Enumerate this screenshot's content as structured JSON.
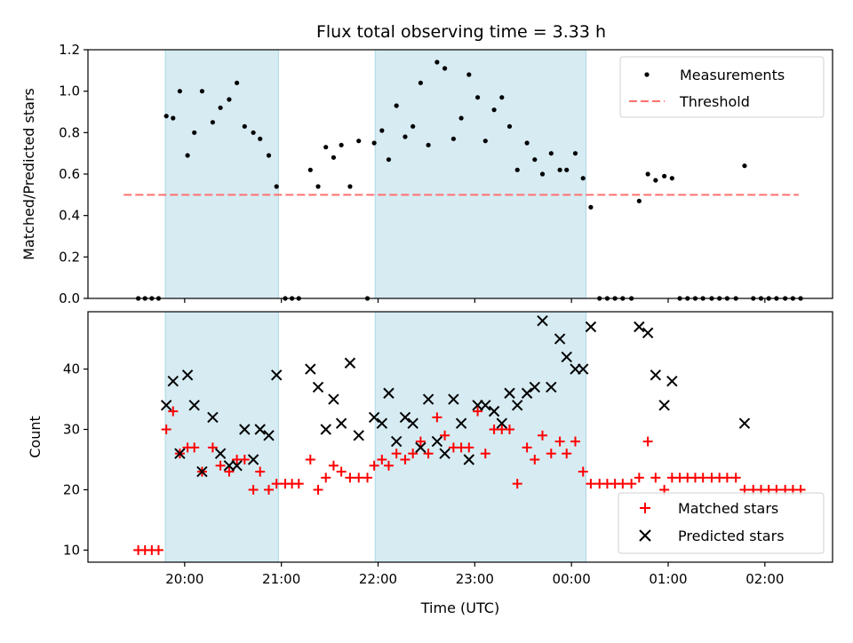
{
  "chart_data": {
    "title": "Flux total observing time = 3.33 h",
    "xlabel": "Time (UTC)",
    "x_tick_labels": [
      "20:00",
      "21:00",
      "22:00",
      "23:00",
      "00:00",
      "01:00",
      "02:00"
    ],
    "x_tick_hours": [
      20,
      21,
      22,
      23,
      24,
      25,
      26
    ],
    "x_range_hours": [
      19.0,
      26.7
    ],
    "shaded_regions_hours": [
      [
        19.8,
        20.97
      ],
      [
        21.97,
        24.15
      ]
    ],
    "shade_color": "#add8e6",
    "top": {
      "type": "scatter",
      "ylabel": "Matched/Predicted stars",
      "ylim": [
        0.0,
        1.2
      ],
      "y_ticks": [
        "0.0",
        "0.2",
        "0.4",
        "0.6",
        "0.8",
        "1.0",
        "1.2"
      ],
      "y_tick_values": [
        0.0,
        0.2,
        0.4,
        0.6,
        0.8,
        1.0,
        1.2
      ],
      "series": [
        {
          "name": "Measurements",
          "color": "#000000",
          "marker": "dot",
          "points": [
            [
              19.52,
              0.0
            ],
            [
              19.59,
              0.0
            ],
            [
              19.66,
              0.0
            ],
            [
              19.73,
              0.0
            ],
            [
              19.81,
              0.88
            ],
            [
              19.88,
              0.87
            ],
            [
              19.95,
              1.0
            ],
            [
              20.03,
              0.69
            ],
            [
              20.1,
              0.8
            ],
            [
              20.18,
              1.0
            ],
            [
              20.29,
              0.85
            ],
            [
              20.37,
              0.92
            ],
            [
              20.46,
              0.96
            ],
            [
              20.54,
              1.04
            ],
            [
              20.62,
              0.83
            ],
            [
              20.71,
              0.8
            ],
            [
              20.78,
              0.77
            ],
            [
              20.87,
              0.69
            ],
            [
              20.95,
              0.54
            ],
            [
              21.04,
              0.0
            ],
            [
              21.11,
              0.0
            ],
            [
              21.18,
              0.0
            ],
            [
              21.3,
              0.62
            ],
            [
              21.38,
              0.54
            ],
            [
              21.46,
              0.73
            ],
            [
              21.54,
              0.68
            ],
            [
              21.62,
              0.74
            ],
            [
              21.71,
              0.54
            ],
            [
              21.8,
              0.76
            ],
            [
              21.89,
              0.0
            ],
            [
              21.96,
              0.75
            ],
            [
              22.04,
              0.81
            ],
            [
              22.11,
              0.67
            ],
            [
              22.19,
              0.93
            ],
            [
              22.28,
              0.78
            ],
            [
              22.36,
              0.83
            ],
            [
              22.44,
              1.04
            ],
            [
              22.52,
              0.74
            ],
            [
              22.61,
              1.14
            ],
            [
              22.69,
              1.11
            ],
            [
              22.78,
              0.77
            ],
            [
              22.86,
              0.87
            ],
            [
              22.94,
              1.08
            ],
            [
              23.03,
              0.97
            ],
            [
              23.11,
              0.76
            ],
            [
              23.2,
              0.91
            ],
            [
              23.28,
              0.97
            ],
            [
              23.36,
              0.83
            ],
            [
              23.44,
              0.62
            ],
            [
              23.54,
              0.75
            ],
            [
              23.62,
              0.67
            ],
            [
              23.7,
              0.6
            ],
            [
              23.79,
              0.7
            ],
            [
              23.88,
              0.62
            ],
            [
              23.95,
              0.62
            ],
            [
              24.04,
              0.7
            ],
            [
              24.12,
              0.58
            ],
            [
              24.2,
              0.44
            ],
            [
              24.29,
              0.0
            ],
            [
              24.37,
              0.0
            ],
            [
              24.45,
              0.0
            ],
            [
              24.53,
              0.0
            ],
            [
              24.62,
              0.0
            ],
            [
              24.7,
              0.47
            ],
            [
              24.79,
              0.6
            ],
            [
              24.87,
              0.57
            ],
            [
              24.96,
              0.59
            ],
            [
              25.04,
              0.58
            ],
            [
              25.12,
              0.0
            ],
            [
              25.2,
              0.0
            ],
            [
              25.28,
              0.0
            ],
            [
              25.36,
              0.0
            ],
            [
              25.45,
              0.0
            ],
            [
              25.53,
              0.0
            ],
            [
              25.61,
              0.0
            ],
            [
              25.7,
              0.0
            ],
            [
              25.79,
              0.64
            ],
            [
              25.88,
              0.0
            ],
            [
              25.96,
              0.0
            ],
            [
              26.04,
              0.0
            ],
            [
              26.12,
              0.0
            ],
            [
              26.21,
              0.0
            ],
            [
              26.29,
              0.0
            ],
            [
              26.37,
              0.0
            ]
          ]
        },
        {
          "name": "Threshold",
          "color": "#ff7070",
          "style": "dashed",
          "points": [
            [
              19.37,
              0.5
            ],
            [
              26.35,
              0.5
            ]
          ]
        }
      ],
      "legend": "upper right"
    },
    "bottom": {
      "type": "scatter",
      "ylabel": "Count",
      "ylim": [
        8,
        49.5
      ],
      "y_ticks": [
        "10",
        "20",
        "30",
        "40"
      ],
      "y_tick_values": [
        10,
        20,
        30,
        40
      ],
      "series": [
        {
          "name": "Matched stars",
          "color": "#ff0000",
          "marker": "plus",
          "points": [
            [
              19.52,
              10
            ],
            [
              19.59,
              10
            ],
            [
              19.66,
              10
            ],
            [
              19.73,
              10
            ],
            [
              19.81,
              30
            ],
            [
              19.88,
              33
            ],
            [
              19.95,
              26
            ],
            [
              20.03,
              27
            ],
            [
              20.1,
              27
            ],
            [
              20.18,
              23
            ],
            [
              20.29,
              27
            ],
            [
              20.37,
              24
            ],
            [
              20.46,
              23
            ],
            [
              20.54,
              25
            ],
            [
              20.62,
              25
            ],
            [
              20.71,
              20
            ],
            [
              20.78,
              23
            ],
            [
              20.87,
              20
            ],
            [
              20.95,
              21
            ],
            [
              21.04,
              21
            ],
            [
              21.11,
              21
            ],
            [
              21.18,
              21
            ],
            [
              21.3,
              25
            ],
            [
              21.38,
              20
            ],
            [
              21.46,
              22
            ],
            [
              21.54,
              24
            ],
            [
              21.62,
              23
            ],
            [
              21.71,
              22
            ],
            [
              21.8,
              22
            ],
            [
              21.89,
              22
            ],
            [
              21.96,
              24
            ],
            [
              22.04,
              25
            ],
            [
              22.11,
              24
            ],
            [
              22.19,
              26
            ],
            [
              22.28,
              25
            ],
            [
              22.36,
              26
            ],
            [
              22.44,
              28
            ],
            [
              22.52,
              26
            ],
            [
              22.61,
              32
            ],
            [
              22.69,
              29
            ],
            [
              22.78,
              27
            ],
            [
              22.86,
              27
            ],
            [
              22.94,
              27
            ],
            [
              23.03,
              33
            ],
            [
              23.11,
              26
            ],
            [
              23.2,
              30
            ],
            [
              23.28,
              30
            ],
            [
              23.36,
              30
            ],
            [
              23.44,
              21
            ],
            [
              23.54,
              27
            ],
            [
              23.62,
              25
            ],
            [
              23.7,
              29
            ],
            [
              23.79,
              26
            ],
            [
              23.88,
              28
            ],
            [
              23.95,
              26
            ],
            [
              24.04,
              28
            ],
            [
              24.12,
              23
            ],
            [
              24.2,
              21
            ],
            [
              24.29,
              21
            ],
            [
              24.37,
              21
            ],
            [
              24.45,
              21
            ],
            [
              24.53,
              21
            ],
            [
              24.62,
              21
            ],
            [
              24.7,
              22
            ],
            [
              24.79,
              28
            ],
            [
              24.87,
              22
            ],
            [
              24.96,
              20
            ],
            [
              25.04,
              22
            ],
            [
              25.12,
              22
            ],
            [
              25.2,
              22
            ],
            [
              25.28,
              22
            ],
            [
              25.36,
              22
            ],
            [
              25.45,
              22
            ],
            [
              25.53,
              22
            ],
            [
              25.61,
              22
            ],
            [
              25.7,
              22
            ],
            [
              25.79,
              20
            ],
            [
              25.88,
              20
            ],
            [
              25.96,
              20
            ],
            [
              26.04,
              20
            ],
            [
              26.12,
              20
            ],
            [
              26.21,
              20
            ],
            [
              26.29,
              20
            ],
            [
              26.37,
              20
            ]
          ]
        },
        {
          "name": "Predicted stars",
          "color": "#000000",
          "marker": "x",
          "points": [
            [
              19.81,
              34
            ],
            [
              19.88,
              38
            ],
            [
              19.95,
              26
            ],
            [
              20.03,
              39
            ],
            [
              20.1,
              34
            ],
            [
              20.18,
              23
            ],
            [
              20.29,
              32
            ],
            [
              20.37,
              26
            ],
            [
              20.46,
              24
            ],
            [
              20.54,
              24
            ],
            [
              20.62,
              30
            ],
            [
              20.71,
              25
            ],
            [
              20.78,
              30
            ],
            [
              20.87,
              29
            ],
            [
              20.95,
              39
            ],
            [
              21.3,
              40
            ],
            [
              21.38,
              37
            ],
            [
              21.46,
              30
            ],
            [
              21.54,
              35
            ],
            [
              21.62,
              31
            ],
            [
              21.71,
              41
            ],
            [
              21.8,
              29
            ],
            [
              21.96,
              32
            ],
            [
              22.04,
              31
            ],
            [
              22.11,
              36
            ],
            [
              22.19,
              28
            ],
            [
              22.28,
              32
            ],
            [
              22.36,
              31
            ],
            [
              22.44,
              27
            ],
            [
              22.52,
              35
            ],
            [
              22.61,
              28
            ],
            [
              22.69,
              26
            ],
            [
              22.78,
              35
            ],
            [
              22.86,
              31
            ],
            [
              22.94,
              25
            ],
            [
              23.03,
              34
            ],
            [
              23.11,
              34
            ],
            [
              23.2,
              33
            ],
            [
              23.28,
              31
            ],
            [
              23.36,
              36
            ],
            [
              23.44,
              34
            ],
            [
              23.54,
              36
            ],
            [
              23.62,
              37
            ],
            [
              23.7,
              48
            ],
            [
              23.79,
              37
            ],
            [
              23.88,
              45
            ],
            [
              23.95,
              42
            ],
            [
              24.04,
              40
            ],
            [
              24.12,
              40
            ],
            [
              24.2,
              47
            ],
            [
              24.7,
              47
            ],
            [
              24.79,
              46
            ],
            [
              24.87,
              39
            ],
            [
              24.96,
              34
            ],
            [
              25.04,
              38
            ],
            [
              25.79,
              31
            ]
          ]
        }
      ],
      "legend": "lower right"
    }
  }
}
